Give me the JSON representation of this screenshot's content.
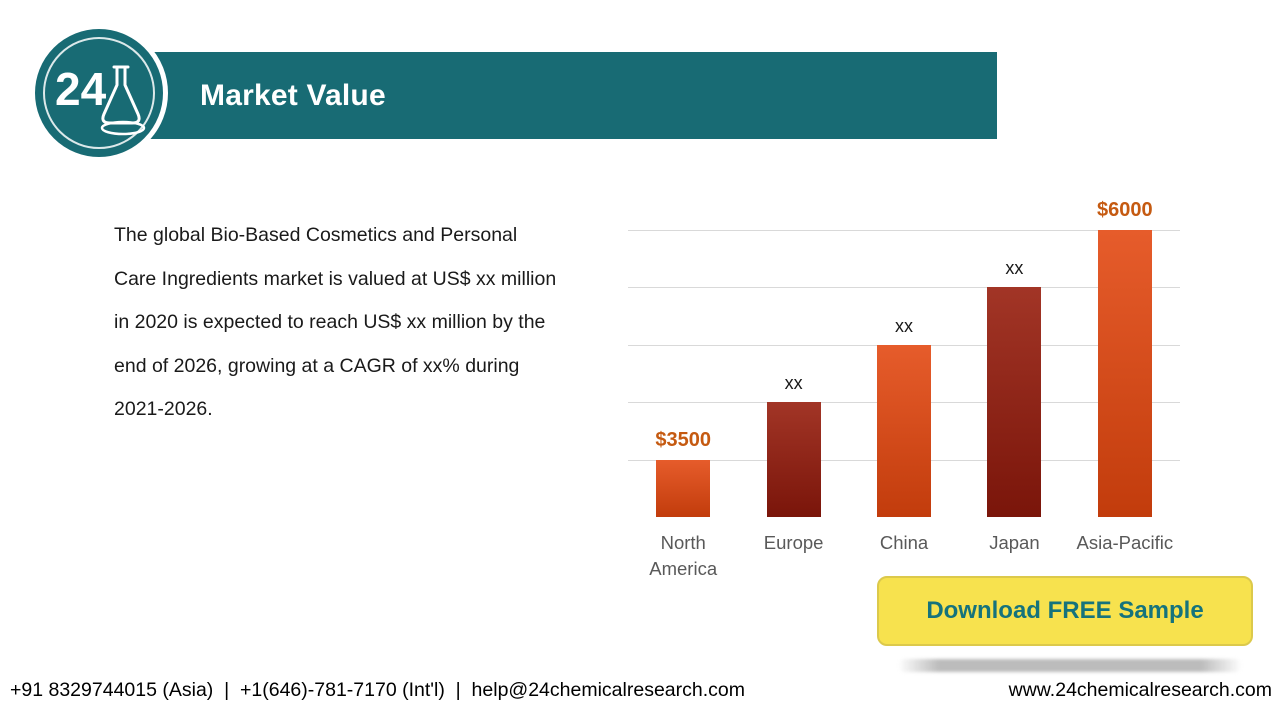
{
  "header": {
    "title": "Market Value"
  },
  "logo": {
    "number": "24",
    "icon": "erlenmeyer-flask-icon"
  },
  "description": {
    "text": "The global Bio-Based Cosmetics and Personal Care Ingredients market is valued at US$ xx million in 2020 is expected to reach US$ xx million by the end of 2026, growing at a CAGR of xx% during 2021-2026."
  },
  "chart_data": {
    "type": "bar",
    "title": "",
    "xlabel": "",
    "ylabel": "",
    "categories": [
      "North America",
      "Europe",
      "China",
      "Japan",
      "Asia-Pacific"
    ],
    "values": [
      3500,
      null,
      null,
      null,
      6000
    ],
    "value_labels": [
      "$3500",
      "xx",
      "xx",
      "xx",
      "$6000"
    ],
    "value_label_colors": [
      "#c55a11",
      "#1a1a1a",
      "#1a1a1a",
      "#1a1a1a",
      "#c55a11"
    ],
    "value_label_emphasis": [
      true,
      false,
      false,
      false,
      true
    ],
    "bar_palette": [
      "orange",
      "dark-red",
      "orange",
      "dark-red",
      "orange"
    ],
    "bar_colors": {
      "orange": [
        "#e65c2b",
        "#c23c0c"
      ],
      "dark-red": [
        "#a23526",
        "#7a150a"
      ]
    },
    "bar_height_fractions": [
      0.2,
      0.4,
      0.6,
      0.8,
      1.0
    ],
    "grid": true,
    "gridline_count": 5,
    "legend": false
  },
  "cta": {
    "label": "Download FREE Sample"
  },
  "footer": {
    "contacts": "+91 8329744015 (Asia)  |  +1(646)-781-7170 (Int'l)  |  help@24chemicalresearch.com",
    "website": "www.24chemicalresearch.com"
  },
  "colors": {
    "teal": "#186b74",
    "accent_orange": "#c55a11",
    "button_yellow": "#f7e24e",
    "button_text_teal": "#15737c",
    "gridline_gray": "#d9d9d9",
    "category_label_gray": "#595959"
  }
}
